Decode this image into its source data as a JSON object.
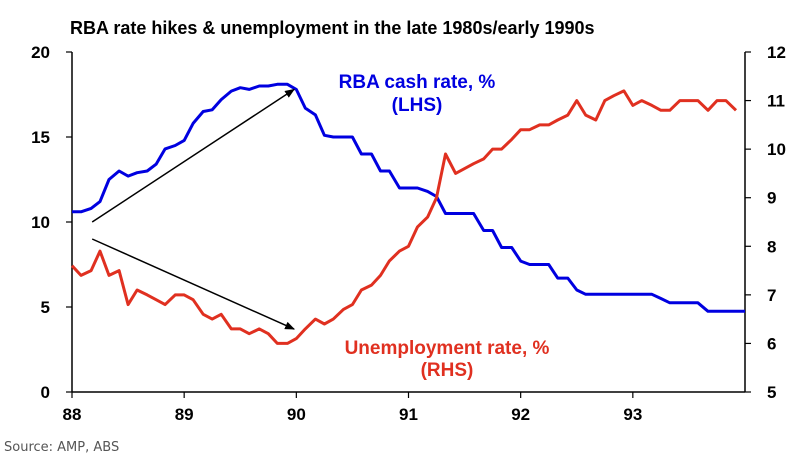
{
  "chart_data": {
    "type": "line",
    "title": "RBA rate hikes & unemployment in the late 1980s/early 1990s",
    "x_ticks": [
      "88",
      "89",
      "90",
      "91",
      "92",
      "93"
    ],
    "xlim": [
      88,
      94
    ],
    "y_left": {
      "ticks": [
        "0",
        "5",
        "10",
        "15",
        "20"
      ],
      "ylim": [
        0,
        20
      ]
    },
    "y_right": {
      "ticks": [
        "5",
        "6",
        "7",
        "8",
        "9",
        "10",
        "11",
        "12"
      ],
      "ylim": [
        5,
        12
      ]
    },
    "grid": false,
    "series": [
      {
        "name": "RBA cash rate, %",
        "name_line2": "(LHS)",
        "axis": "left",
        "color": "#0000e0",
        "x": [
          88.0,
          88.08,
          88.17,
          88.25,
          88.33,
          88.42,
          88.5,
          88.58,
          88.67,
          88.75,
          88.83,
          88.92,
          89.0,
          89.08,
          89.17,
          89.25,
          89.33,
          89.42,
          89.5,
          89.58,
          89.67,
          89.75,
          89.83,
          89.92,
          90.0,
          90.08,
          90.17,
          90.25,
          90.33,
          90.42,
          90.5,
          90.58,
          90.67,
          90.75,
          90.83,
          90.92,
          91.0,
          91.08,
          91.17,
          91.25,
          91.33,
          91.42,
          91.5,
          91.58,
          91.67,
          91.75,
          91.83,
          91.92,
          92.0,
          92.08,
          92.17,
          92.25,
          92.33,
          92.42,
          92.5,
          92.58,
          92.67,
          92.75,
          92.83,
          92.92,
          93.0,
          93.08,
          93.17,
          93.25,
          93.33,
          93.42,
          93.5,
          93.58,
          93.67,
          93.75,
          93.83,
          93.92,
          94.0
        ],
        "values": [
          10.6,
          10.6,
          10.8,
          11.2,
          12.5,
          13.0,
          12.7,
          12.9,
          13.0,
          13.4,
          14.3,
          14.5,
          14.8,
          15.8,
          16.5,
          16.6,
          17.2,
          17.7,
          17.9,
          17.8,
          18.0,
          18.0,
          18.1,
          18.1,
          17.8,
          16.7,
          16.3,
          15.1,
          15.0,
          15.0,
          15.0,
          14.0,
          14.0,
          13.0,
          13.0,
          12.0,
          12.0,
          12.0,
          11.8,
          11.5,
          10.5,
          10.5,
          10.5,
          10.5,
          9.5,
          9.5,
          8.5,
          8.5,
          7.7,
          7.5,
          7.5,
          7.5,
          6.7,
          6.7,
          6.0,
          5.75,
          5.75,
          5.75,
          5.75,
          5.75,
          5.75,
          5.75,
          5.75,
          5.5,
          5.25,
          5.25,
          5.25,
          5.25,
          4.75,
          4.75,
          4.75,
          4.75,
          4.75
        ]
      },
      {
        "name": "Unemployment rate, %",
        "name_line2": "(RHS)",
        "axis": "right",
        "color": "#e03020",
        "x": [
          88.0,
          88.08,
          88.17,
          88.25,
          88.33,
          88.42,
          88.5,
          88.58,
          88.67,
          88.75,
          88.83,
          88.92,
          89.0,
          89.08,
          89.17,
          89.25,
          89.33,
          89.42,
          89.5,
          89.58,
          89.67,
          89.75,
          89.83,
          89.92,
          90.0,
          90.08,
          90.17,
          90.25,
          90.33,
          90.42,
          90.5,
          90.58,
          90.67,
          90.75,
          90.83,
          90.92,
          91.0,
          91.08,
          91.17,
          91.25,
          91.33,
          91.42,
          91.5,
          91.58,
          91.67,
          91.75,
          91.83,
          91.92,
          92.0,
          92.08,
          92.17,
          92.25,
          92.33,
          92.42,
          92.5,
          92.58,
          92.67,
          92.75,
          92.83,
          92.92,
          93.0,
          93.08,
          93.17,
          93.25,
          93.33,
          93.42,
          93.5,
          93.58,
          93.67,
          93.75,
          93.83,
          93.92
        ],
        "values": [
          7.6,
          7.4,
          7.5,
          7.9,
          7.4,
          7.5,
          6.8,
          7.1,
          7.0,
          6.9,
          6.8,
          7.0,
          7.0,
          6.9,
          6.6,
          6.5,
          6.6,
          6.3,
          6.3,
          6.2,
          6.3,
          6.2,
          6.0,
          6.0,
          6.1,
          6.3,
          6.5,
          6.4,
          6.5,
          6.7,
          6.8,
          7.1,
          7.2,
          7.4,
          7.7,
          7.9,
          8.0,
          8.4,
          8.6,
          9.0,
          9.9,
          9.5,
          9.6,
          9.7,
          9.8,
          10.0,
          10.0,
          10.2,
          10.4,
          10.4,
          10.5,
          10.5,
          10.6,
          10.7,
          11.0,
          10.7,
          10.6,
          11.0,
          11.1,
          11.2,
          10.9,
          11.0,
          10.9,
          10.8,
          10.8,
          11.0,
          11.0,
          11.0,
          10.8,
          11.0,
          11.0,
          10.8
        ]
      }
    ],
    "annotations": {
      "upper_arrow": {
        "from": [
          88.18,
          10.0
        ],
        "to": [
          89.98,
          17.8
        ],
        "axis": "left"
      },
      "lower_arrow": {
        "from": [
          88.18,
          9.0
        ],
        "to": [
          89.98,
          3.7
        ],
        "axis": "left"
      }
    },
    "source": "Source: AMP, ABS"
  }
}
